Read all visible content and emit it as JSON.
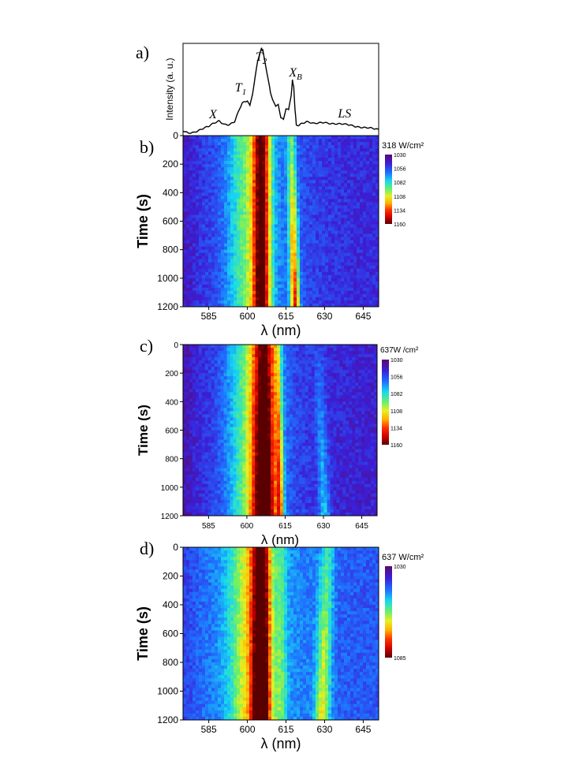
{
  "chart_data": [
    {
      "type": "line",
      "panel_label": "a)",
      "ylabel": "Intensity (a. u.)",
      "xlim": [
        575,
        651
      ],
      "x_units": "nm",
      "annotations": [
        {
          "text": "X",
          "x": 587
        },
        {
          "text": "T",
          "sub": "1",
          "x": 597
        },
        {
          "text": "T",
          "sub": "2",
          "x": 605
        },
        {
          "text": "X",
          "sub": "B",
          "x": 618
        },
        {
          "text": "LS",
          "x": 637
        }
      ],
      "x": [
        575,
        577,
        579,
        581,
        583,
        585,
        587,
        589,
        591,
        593,
        595,
        597,
        598,
        599,
        600,
        601,
        602,
        603,
        604,
        605,
        605.5,
        606,
        607,
        608,
        609,
        610,
        611,
        612,
        613,
        614,
        615,
        616,
        617,
        617.5,
        618,
        618.5,
        619,
        620,
        621,
        623,
        626,
        630,
        635,
        640,
        645,
        651
      ],
      "y": [
        0.05,
        0.03,
        0.04,
        0.06,
        0.08,
        0.1,
        0.14,
        0.17,
        0.13,
        0.12,
        0.15,
        0.3,
        0.37,
        0.38,
        0.4,
        0.34,
        0.47,
        0.66,
        0.83,
        0.94,
        0.98,
        0.95,
        0.8,
        0.64,
        0.48,
        0.4,
        0.33,
        0.36,
        0.2,
        0.18,
        0.3,
        0.28,
        0.45,
        0.62,
        0.55,
        0.3,
        0.12,
        0.12,
        0.14,
        0.16,
        0.13,
        0.15,
        0.13,
        0.12,
        0.09,
        0.07
      ]
    },
    {
      "type": "heatmap",
      "panel_label": "b)",
      "power_label": "318 W/cm²",
      "xlabel": "λ (nm)",
      "ylabel": "Time (s)",
      "x_ticks": [
        "585",
        "600",
        "615",
        "630",
        "645"
      ],
      "x_tick_values": [
        585,
        600,
        615,
        630,
        645
      ],
      "y_ticks": [
        "0",
        "200",
        "400",
        "600",
        "800",
        "1000",
        "1200"
      ],
      "y_tick_values": [
        0,
        200,
        400,
        600,
        800,
        1000,
        1200
      ],
      "xlim": [
        575,
        651
      ],
      "ylim": [
        0,
        1200
      ],
      "colorbar_ticks": [
        "1030",
        "1056",
        "1082",
        "1108",
        "1134",
        "1160"
      ],
      "peaks": [
        {
          "center": 605.5,
          "width": 2.3,
          "amp_start": 0.6,
          "amp_end": 0.66,
          "drift": 0
        },
        {
          "center": 617.0,
          "width": 1.3,
          "amp_start": 0.25,
          "amp_end": 0.62,
          "drift": 1.5
        },
        {
          "center": 601.0,
          "width": 6.0,
          "amp_start": 0.28,
          "amp_end": 0.28,
          "drift": 0
        }
      ],
      "background": 0.14
    },
    {
      "type": "heatmap",
      "panel_label": "c)",
      "power_label": "637W /cm²",
      "xlabel": "λ (nm)",
      "ylabel": "Time (s)",
      "x_ticks": [
        "585",
        "600",
        "615",
        "630",
        "645"
      ],
      "x_tick_values": [
        585,
        600,
        615,
        630,
        645
      ],
      "y_ticks": [
        "0",
        "200",
        "400",
        "600",
        "800",
        "1000",
        "1200"
      ],
      "y_tick_values": [
        0,
        200,
        400,
        600,
        800,
        1000,
        1200
      ],
      "xlim": [
        575,
        651
      ],
      "ylim": [
        0,
        1200
      ],
      "colorbar_ticks": [
        "1030",
        "1056",
        "1082",
        "1108",
        "1134",
        "1160"
      ],
      "peaks": [
        {
          "center": 607.0,
          "width": 3.2,
          "amp_start": 0.58,
          "amp_end": 0.8,
          "drift": 0
        },
        {
          "center": 612.0,
          "width": 1.0,
          "amp_start": 0.15,
          "amp_end": 0.45,
          "drift": 1.0
        },
        {
          "center": 602.0,
          "width": 6.5,
          "amp_start": 0.3,
          "amp_end": 0.32,
          "drift": 0
        },
        {
          "center": 628.0,
          "width": 1.5,
          "amp_start": 0.05,
          "amp_end": 0.22,
          "drift": 2.5
        }
      ],
      "background": 0.12
    },
    {
      "type": "heatmap",
      "panel_label": "d)",
      "power_label": "637 W/cm²",
      "xlabel": "λ (nm)",
      "ylabel": "Time (s)",
      "x_ticks": [
        "585",
        "600",
        "615",
        "630",
        "645"
      ],
      "x_tick_values": [
        585,
        600,
        615,
        630,
        645
      ],
      "y_ticks": [
        "0",
        "200",
        "400",
        "600",
        "800",
        "1000",
        "1200"
      ],
      "y_tick_values": [
        0,
        200,
        400,
        600,
        800,
        1000,
        1200
      ],
      "xlim": [
        575,
        651
      ],
      "ylim": [
        0,
        1200
      ],
      "colorbar_ticks": [
        "1030",
        "1085"
      ],
      "peaks": [
        {
          "center": 605.5,
          "width": 2.5,
          "amp_start": 0.62,
          "amp_end": 0.78,
          "drift": 0
        },
        {
          "center": 601.0,
          "width": 5.5,
          "amp_start": 0.3,
          "amp_end": 0.32,
          "drift": 0
        },
        {
          "center": 631.0,
          "width": 2.0,
          "amp_start": 0.18,
          "amp_end": 0.38,
          "drift": -2.0
        },
        {
          "center": 613.0,
          "width": 1.5,
          "amp_start": 0.12,
          "amp_end": 0.18,
          "drift": 0
        }
      ],
      "background": 0.22
    }
  ]
}
